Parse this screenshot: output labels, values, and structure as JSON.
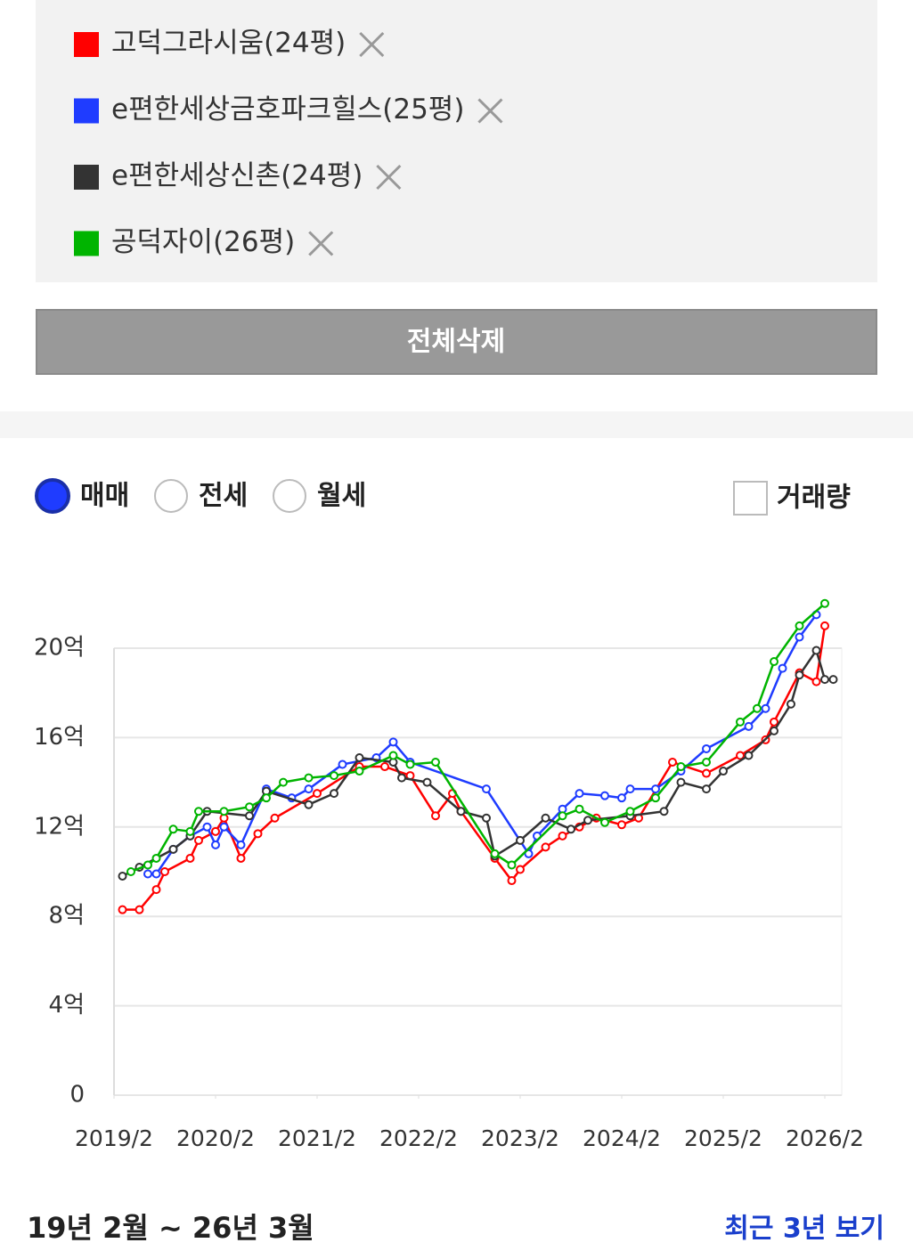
{
  "filters": {
    "button": "전체삭제",
    "radios": [
      "매매",
      "전세",
      "월세"
    ],
    "selected": 0,
    "checkbox": "거래량"
  },
  "chart_data": {
    "type": "line",
    "xlim": [
      "2019/2",
      "2026/4"
    ],
    "xticks": [
      "2019/2",
      "2020/2",
      "2021/2",
      "2022/2",
      "2023/2",
      "2024/2",
      "2025/2",
      "2026/2"
    ],
    "ylim": [
      0,
      20
    ],
    "yticks": [
      {
        "value": 0,
        "label": "0"
      },
      {
        "value": 4,
        "label": "4억"
      },
      {
        "value": 8,
        "label": "8억"
      },
      {
        "value": 12,
        "label": "12억"
      },
      {
        "value": 16,
        "label": "16억"
      },
      {
        "value": 20,
        "label": "20억"
      }
    ],
    "grid": true,
    "series": [
      {
        "name": "고덕그라시움(24평)",
        "color": "#ff0000",
        "x": [
          "2019/3",
          "2019/5",
          "2019/7",
          "2019/8",
          "2019/11",
          "2019/12",
          "2020/2",
          "2020/3",
          "2020/5",
          "2020/7",
          "2020/9",
          "2021/2",
          "2021/7",
          "2021/10",
          "2022/1",
          "2022/4",
          "2022/6",
          "2022/7",
          "2022/11",
          "2023/1",
          "2023/2",
          "2023/5",
          "2023/7",
          "2023/9",
          "2023/11",
          "2024/2",
          "2024/4",
          "2024/8",
          "2024/12",
          "2025/4",
          "2025/7",
          "2025/8",
          "2025/11",
          "2026/1",
          "2026/2"
        ],
        "values": [
          8.3,
          8.3,
          9.2,
          10.0,
          10.6,
          11.4,
          11.8,
          12.4,
          10.6,
          11.7,
          12.4,
          13.5,
          14.7,
          14.7,
          14.3,
          12.5,
          13.5,
          12.7,
          10.6,
          9.6,
          10.1,
          11.1,
          11.6,
          12.0,
          12.4,
          12.1,
          12.4,
          14.9,
          14.4,
          15.2,
          15.9,
          16.7,
          18.9,
          18.5,
          21.0
        ]
      },
      {
        "name": "e편한세상금호파크힐스(25평)",
        "color": "#1f3cff",
        "x": [
          "2019/6",
          "2019/7",
          "2019/9",
          "2019/11",
          "2020/1",
          "2020/2",
          "2020/3",
          "2020/5",
          "2020/8",
          "2020/11",
          "2021/1",
          "2021/5",
          "2021/9",
          "2021/11",
          "2022/1",
          "2022/10",
          "2023/3",
          "2023/4",
          "2023/7",
          "2023/9",
          "2023/12",
          "2024/2",
          "2024/3",
          "2024/6",
          "2024/9",
          "2024/12",
          "2025/5",
          "2025/7",
          "2025/9",
          "2025/11",
          "2026/1"
        ],
        "values": [
          9.9,
          9.9,
          11.0,
          11.6,
          12.0,
          11.2,
          12.0,
          11.2,
          13.7,
          13.3,
          13.7,
          14.8,
          15.1,
          15.8,
          14.9,
          13.7,
          10.8,
          11.6,
          12.8,
          13.5,
          13.4,
          13.3,
          13.7,
          13.7,
          14.5,
          15.5,
          16.5,
          17.3,
          19.1,
          20.5,
          21.5
        ]
      },
      {
        "name": "e편한세상신촌(24평)",
        "color": "#333333",
        "x": [
          "2019/3",
          "2019/5",
          "2019/9",
          "2019/11",
          "2020/1",
          "2020/6",
          "2020/8",
          "2021/1",
          "2021/4",
          "2021/7",
          "2021/11",
          "2021/12",
          "2022/3",
          "2022/7",
          "2022/10",
          "2022/11",
          "2023/2",
          "2023/5",
          "2023/8",
          "2023/10",
          "2024/3",
          "2024/7",
          "2024/9",
          "2024/12",
          "2025/2",
          "2025/5",
          "2025/8",
          "2025/10",
          "2025/11",
          "2026/1",
          "2026/2",
          "2026/3"
        ],
        "values": [
          9.8,
          10.2,
          11.0,
          11.6,
          12.7,
          12.5,
          13.6,
          13.0,
          13.5,
          15.1,
          14.9,
          14.2,
          14.0,
          12.7,
          12.4,
          10.7,
          11.4,
          12.4,
          11.9,
          12.3,
          12.5,
          12.7,
          14.0,
          13.7,
          14.5,
          15.2,
          16.3,
          17.5,
          18.8,
          19.9,
          18.6,
          18.6
        ]
      },
      {
        "name": "공덕자이(26평)",
        "color": "#00b400",
        "x": [
          "2019/4",
          "2019/6",
          "2019/7",
          "2019/9",
          "2019/11",
          "2019/12",
          "2020/3",
          "2020/6",
          "2020/8",
          "2020/10",
          "2021/1",
          "2021/4",
          "2021/7",
          "2021/11",
          "2022/1",
          "2022/4",
          "2022/11",
          "2023/1",
          "2023/7",
          "2023/9",
          "2023/12",
          "2024/3",
          "2024/6",
          "2024/9",
          "2024/12",
          "2025/4",
          "2025/6",
          "2025/8",
          "2025/11",
          "2026/2"
        ],
        "values": [
          10.0,
          10.3,
          10.6,
          11.9,
          11.8,
          12.7,
          12.7,
          12.9,
          13.3,
          14.0,
          14.2,
          14.3,
          14.5,
          15.2,
          14.8,
          14.9,
          10.8,
          10.3,
          12.5,
          12.8,
          12.2,
          12.7,
          13.3,
          14.7,
          14.9,
          16.7,
          17.3,
          19.4,
          21.0,
          22.0
        ]
      }
    ]
  },
  "footer": {
    "range": "19년 2월 ~ 26년 3월",
    "link": "최근 3년 보기"
  }
}
